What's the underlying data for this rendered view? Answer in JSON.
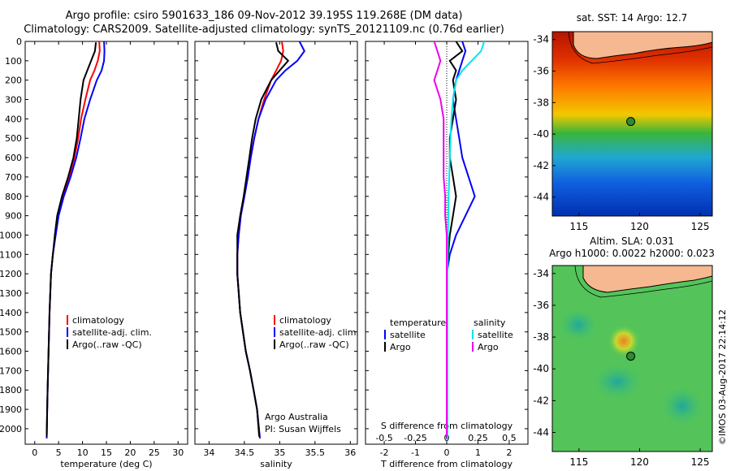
{
  "header": {
    "title_line1": "Argo profile: csiro 5901633_186 09-Nov-2012 39.195S 119.268E (DM data)",
    "title_line2": "Climatology: CARS2009. Satellite-adjusted climatology: synTS_20121109.nc (0.76d earlier)"
  },
  "credit": "©IMOS 03-Aug-2017 22:14:12",
  "colors": {
    "climatology": "#ff0000",
    "satellite": "#0000ff",
    "argo": "#000000",
    "salinity_sat": "#00e5ee",
    "salinity_argo": "#ee00ee"
  },
  "chart_data": [
    {
      "id": "temp",
      "type": "line",
      "xlabel": "temperature (deg C)",
      "xlim": [
        -2,
        32
      ],
      "xticks": [
        0,
        5,
        10,
        15,
        20,
        25,
        30
      ],
      "ylim": [
        0,
        2080
      ],
      "yticks": [
        0,
        100,
        200,
        300,
        400,
        500,
        600,
        700,
        800,
        900,
        1000,
        1100,
        1200,
        1300,
        1400,
        1500,
        1600,
        1700,
        1800,
        1900,
        2000
      ],
      "y_reversed": true,
      "legend": [
        "climatology",
        "satellite-adj. clim.",
        "Argo(..raw -QC)"
      ],
      "legend_position": "lower-middle",
      "series": [
        {
          "name": "climatology",
          "color": "#ff0000",
          "x": [
            13.5,
            13.6,
            13.2,
            12.5,
            11.6,
            10.6,
            9.7,
            9.1,
            8.3,
            7.2,
            5.9,
            4.9,
            4.3,
            3.8,
            3.4,
            3.1,
            2.9,
            2.8,
            2.7,
            2.6,
            2.5
          ],
          "y": [
            0,
            50,
            100,
            150,
            200,
            300,
            400,
            500,
            600,
            700,
            800,
            900,
            1000,
            1100,
            1200,
            1400,
            1600,
            1700,
            1800,
            1900,
            2050
          ]
        },
        {
          "name": "satellite-adj. clim.",
          "color": "#0000ff",
          "x": [
            14.5,
            14.6,
            14.5,
            14.0,
            13.0,
            11.6,
            10.4,
            9.6,
            8.7,
            7.5,
            6.1,
            5.0,
            4.4,
            3.8,
            3.4,
            3.1,
            2.9,
            2.8,
            2.7,
            2.6,
            2.5
          ],
          "y": [
            0,
            50,
            100,
            150,
            200,
            300,
            400,
            500,
            600,
            700,
            800,
            900,
            1000,
            1100,
            1200,
            1400,
            1600,
            1700,
            1800,
            1900,
            2050
          ]
        },
        {
          "name": "Argo(..raw -QC)",
          "color": "#000000",
          "x": [
            12.8,
            12.6,
            11.8,
            11.0,
            10.2,
            9.6,
            9.2,
            8.8,
            8.1,
            7.0,
            5.7,
            4.7,
            4.2,
            3.8,
            3.4,
            3.1,
            2.9,
            2.8,
            2.7,
            2.6,
            2.5
          ],
          "y": [
            5,
            50,
            100,
            150,
            200,
            300,
            400,
            500,
            600,
            700,
            800,
            900,
            1000,
            1100,
            1200,
            1400,
            1600,
            1700,
            1800,
            1900,
            2040
          ]
        }
      ]
    },
    {
      "id": "sal",
      "type": "line",
      "xlabel": "salinity",
      "xlim": [
        33.8,
        36.1
      ],
      "xticks": [
        34,
        34.5,
        35,
        35.5,
        36
      ],
      "xtick_labels": [
        "34",
        "34.5",
        "35",
        "35.5",
        "36"
      ],
      "ylim": [
        0,
        2080
      ],
      "y_reversed": true,
      "legend": [
        "climatology",
        "satellite-adj. clim.",
        "Argo(..raw -QC)"
      ],
      "legend_position": "lower-right",
      "annotation": [
        "Argo Australia",
        "PI: Susan Wijffels"
      ],
      "series": [
        {
          "name": "climatology",
          "color": "#ff0000",
          "x": [
            35.03,
            35.05,
            35.02,
            34.95,
            34.88,
            34.78,
            34.7,
            34.64,
            34.59,
            34.55,
            34.5,
            34.45,
            34.42,
            34.4,
            34.4,
            34.44,
            34.52,
            34.58,
            34.63,
            34.68,
            34.72
          ],
          "y": [
            0,
            50,
            100,
            150,
            200,
            300,
            400,
            500,
            600,
            700,
            800,
            900,
            1000,
            1100,
            1200,
            1400,
            1600,
            1700,
            1800,
            1900,
            2050
          ]
        },
        {
          "name": "satellite-adj. clim.",
          "color": "#0000ff",
          "x": [
            35.28,
            35.35,
            35.25,
            35.08,
            34.95,
            34.8,
            34.7,
            34.64,
            34.59,
            34.55,
            34.5,
            34.45,
            34.42,
            34.4,
            34.4,
            34.44,
            34.52,
            34.58,
            34.63,
            34.68,
            34.72
          ],
          "y": [
            0,
            50,
            100,
            150,
            200,
            300,
            400,
            500,
            600,
            700,
            800,
            900,
            1000,
            1100,
            1200,
            1400,
            1600,
            1700,
            1800,
            1900,
            2050
          ]
        },
        {
          "name": "Argo(..raw -QC)",
          "color": "#000000",
          "x": [
            34.95,
            34.98,
            35.12,
            35.0,
            34.88,
            34.74,
            34.66,
            34.61,
            34.57,
            34.53,
            34.49,
            34.44,
            34.4,
            34.4,
            34.4,
            34.44,
            34.52,
            34.58,
            34.63,
            34.68,
            34.71
          ],
          "y": [
            5,
            50,
            100,
            150,
            200,
            300,
            400,
            500,
            600,
            700,
            800,
            900,
            1000,
            1100,
            1200,
            1400,
            1600,
            1700,
            1800,
            1900,
            2040
          ]
        }
      ]
    },
    {
      "id": "diff",
      "type": "line",
      "xlabel": "T difference from climatology",
      "top_xlabel": "S difference from climatology",
      "xlim": [
        -2.6,
        2.6
      ],
      "xticks": [
        -2,
        -1,
        0,
        1,
        2
      ],
      "top_xticks": [
        -0.5,
        -0.25,
        0,
        0.25,
        0.5
      ],
      "top_xtick_labels": [
        "-0.5",
        "-0.25",
        "0",
        "0.25",
        "0.5"
      ],
      "ylim": [
        0,
        2080
      ],
      "y_reversed": true,
      "legend_titles": [
        "temperature",
        "salinity"
      ],
      "legend": [
        "satellite",
        "Argo",
        "satellite",
        "Argo"
      ],
      "series": [
        {
          "name": "satellite",
          "group": "temperature",
          "color": "#0000ff",
          "x": [
            0.5,
            0.6,
            0.5,
            0.4,
            0.3,
            0.2,
            0.3,
            0.4,
            0.5,
            0.7,
            0.9,
            0.6,
            0.3,
            0.1,
            0.0,
            0.0,
            0.0,
            0.0,
            0.0,
            0.0,
            0.0
          ],
          "y": [
            0,
            50,
            100,
            150,
            200,
            300,
            400,
            500,
            600,
            700,
            800,
            900,
            1000,
            1100,
            1200,
            1400,
            1600,
            1700,
            1800,
            1900,
            2050
          ]
        },
        {
          "name": "Argo",
          "group": "temperature",
          "color": "#000000",
          "x": [
            0.3,
            0.5,
            0.1,
            0.3,
            0.2,
            0.3,
            0.2,
            0.1,
            0.1,
            0.2,
            0.3,
            0.2,
            0.1,
            0.05,
            0.0,
            0.0,
            0.0,
            0.0,
            0.0,
            0.0,
            0.0
          ],
          "y": [
            0,
            50,
            100,
            150,
            200,
            300,
            400,
            500,
            600,
            700,
            800,
            900,
            1000,
            1100,
            1200,
            1400,
            1600,
            1700,
            1800,
            1900,
            2040
          ]
        },
        {
          "name": "satellite",
          "group": "salinity",
          "color": "#00e5ee",
          "x": [
            1.2,
            1.1,
            0.8,
            0.5,
            0.3,
            0.2,
            0.15,
            0.12,
            0.1,
            0.08,
            0.06,
            0.05,
            0.04,
            0.03,
            0.02,
            0.02,
            0.02,
            0.02,
            0.02,
            0.02,
            0.02
          ],
          "y": [
            0,
            50,
            100,
            150,
            200,
            300,
            400,
            500,
            600,
            700,
            800,
            900,
            1000,
            1100,
            1200,
            1400,
            1600,
            1700,
            1800,
            1900,
            2050
          ]
        },
        {
          "name": "Argo",
          "group": "salinity",
          "color": "#ee00ee",
          "x": [
            -0.4,
            -0.3,
            -0.2,
            -0.3,
            -0.4,
            -0.2,
            -0.1,
            -0.1,
            -0.1,
            -0.1,
            -0.05,
            -0.05,
            0.0,
            0.0,
            0.0,
            0.0,
            0.0,
            0.0,
            0.0,
            0.0,
            0.0
          ],
          "y": [
            0,
            50,
            100,
            150,
            200,
            300,
            400,
            500,
            600,
            700,
            800,
            900,
            1000,
            1100,
            1200,
            1400,
            1600,
            1700,
            1800,
            1900,
            2040
          ]
        }
      ]
    },
    {
      "id": "sst",
      "type": "heatmap",
      "title": "sat. SST: 14 Argo: 12.7",
      "xlim": [
        112.8,
        126
      ],
      "xticks": [
        115,
        120,
        125
      ],
      "ylim": [
        -45.2,
        -33.5
      ],
      "yticks": [
        -34,
        -36,
        -38,
        -40,
        -42,
        -44
      ],
      "float_position": [
        119.27,
        -39.2
      ]
    },
    {
      "id": "sla",
      "type": "heatmap",
      "title": [
        "Altim. SLA: 0.031",
        "Argo h1000: 0.0022 h2000: 0.023"
      ],
      "xlim": [
        112.8,
        126
      ],
      "xticks": [
        115,
        120,
        125
      ],
      "ylim": [
        -45.2,
        -33.5
      ],
      "yticks": [
        -34,
        -36,
        -38,
        -40,
        -42,
        -44
      ],
      "float_position": [
        119.27,
        -39.2
      ]
    }
  ]
}
